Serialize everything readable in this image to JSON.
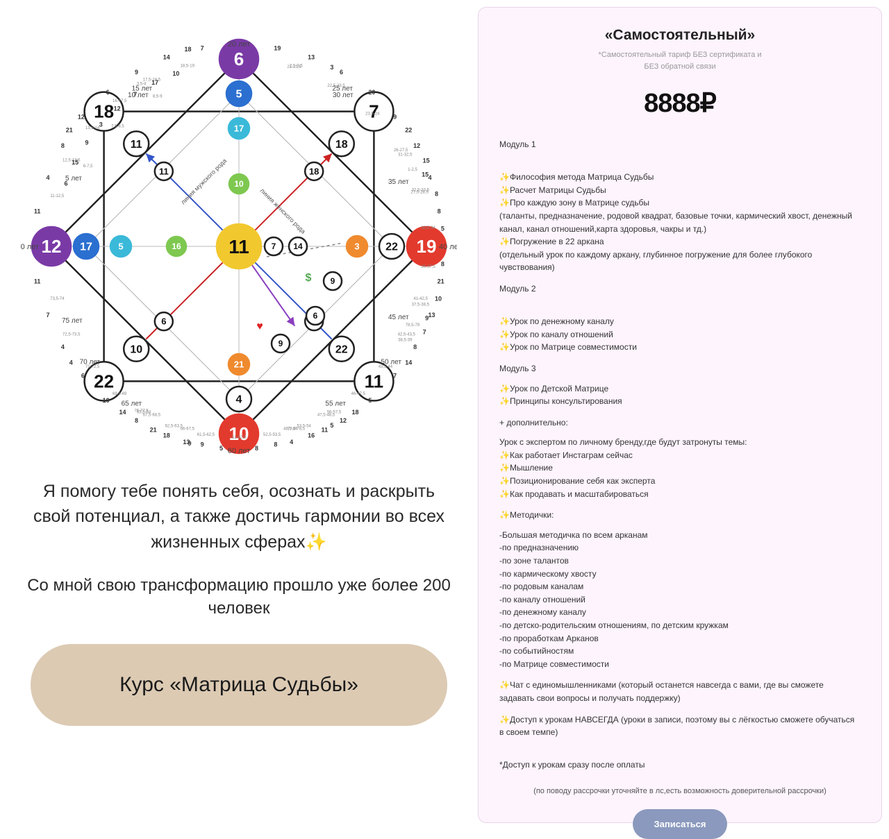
{
  "left": {
    "headline": "Я помогу тебе понять себя, осознать и раскрыть свой потенциал, а также достичь гармонии во всех жизненных сферах✨",
    "subheadline": "Со мной свою трансформацию прошло уже более 200 человек",
    "course_button": "Курс «Матрица Судьбы»"
  },
  "pricing": {
    "title": "«Самостоятельный»",
    "subtitle_line1": "*Самостоятельный тариф БЕЗ сертификата и",
    "subtitle_line2": "БЕЗ обратной связи",
    "price": "8888₽",
    "module1_title": "Модуль 1",
    "m1_i1": "Философия метода Матрица Судьбы",
    "m1_i2": "Расчет Матрицы Судьбы",
    "m1_i3": "Про каждую зону в Матрице судьбы",
    "m1_i3_sub": "(таланты, предназначение, родовой квадрат, базовые точки, кармический хвост, денежный канал, канал отношений,карта здоровья, чакры и тд.)",
    "m1_i4": "Погружение в 22 аркана",
    "m1_i4_sub": "(отдельный урок по каждому аркану, глубинное погружение для более глубокого чувствования)",
    "module2_title": "Модуль 2",
    "m2_i1": "Урок по денежному каналу",
    "m2_i2": "Урок по каналу отношений",
    "m2_i3": "Урок по Матрице совместимости",
    "module3_title": "Модуль 3",
    "m3_i1": "Урок по Детской Матрице",
    "m3_i2": "Принципы консультирования",
    "extra_title": "+ дополнительно:",
    "extra_sub": "Урок с экспертом по личному бренду,где будут затронуты темы:",
    "e1": "Как работает Инстаграм сейчас",
    "e2": "Мышление",
    "e3": "Позиционирование себя как эксперта",
    "e4": "Как продавать и масштабироваться",
    "method_title": "Методички:",
    "md1": "-Большая методичка по всем арканам",
    "md2": "-по предназначению",
    "md3": "-по зоне талантов",
    "md4": "-по кармическому хвосту",
    "md5": "-по родовым каналам",
    "md6": "-по каналу отношений",
    "md7": "-по денежному каналу",
    "md8": "-по детско-родительским отношениям, по детским кружкам",
    "md9": "-по проработкам Арканов",
    "md10": "-по событийностям",
    "md11": "-по Матрице совместимости",
    "chat": "Чат с единомышленниками (который останется навсегда с вами, где вы сможете задавать свои вопросы и получать поддержку)",
    "access": "Доступ к урокам НАВСЕГДА (уроки в записи, поэтому вы с лёгкостью сможете обучаться в своем темпе)",
    "access_note": "*Доступ к урокам сразу после оплаты",
    "installment_note": "(по поводу рассрочки уточняйте в лс,есть возможность доверительной рассрочки)",
    "enroll": "Записаться"
  },
  "diagram": {
    "colors": {
      "purple": "#7a3aa6",
      "blue": "#2b6fd0",
      "cyan": "#3bb9d9",
      "green": "#7ec850",
      "yellow": "#f2c82f",
      "orange": "#f08a2e",
      "red": "#e33a2e",
      "outline": "#222222",
      "grid": "#bbbbbb",
      "arrow_blue": "#3355cc",
      "arrow_red": "#cc2222",
      "arrow_purple": "#8a3fbf"
    },
    "big": {
      "top": {
        "v": "6",
        "fill": "purple",
        "text": "#ffffff"
      },
      "right": {
        "v": "19",
        "fill": "red",
        "text": "#ffffff"
      },
      "bottom": {
        "v": "10",
        "fill": "red",
        "text": "#ffffff"
      },
      "left": {
        "v": "12",
        "fill": "purple",
        "text": "#ffffff"
      },
      "tl": {
        "v": "18",
        "fill": "none",
        "text": "#111111"
      },
      "tr": {
        "v": "7",
        "fill": "none",
        "text": "#111111"
      },
      "br": {
        "v": "11",
        "fill": "none",
        "text": "#111111"
      },
      "bl": {
        "v": "22",
        "fill": "none",
        "text": "#111111"
      },
      "center": {
        "v": "11",
        "fill": "yellow",
        "text": "#111111"
      }
    },
    "ring2": {
      "top": {
        "v": "5",
        "fill": "blue",
        "text": "#ffffff"
      },
      "right": {
        "v": "22",
        "fill": "none",
        "text": "#111111"
      },
      "bottom": {
        "v": "4",
        "fill": "none",
        "text": "#111111"
      },
      "left": {
        "v": "17",
        "fill": "blue",
        "text": "#ffffff"
      },
      "tl": {
        "v": "11",
        "fill": "none",
        "text": "#111111"
      },
      "tr": {
        "v": "18",
        "fill": "none",
        "text": "#111111"
      },
      "br": {
        "v": "22",
        "fill": "none",
        "text": "#111111"
      },
      "bl": {
        "v": "10",
        "fill": "none",
        "text": "#111111"
      }
    },
    "ring3": {
      "top": {
        "v": "17",
        "fill": "cyan",
        "text": "#ffffff"
      },
      "right": {
        "v": "3",
        "fill": "orange",
        "text": "#ffffff"
      },
      "bottom": {
        "v": "21",
        "fill": "orange",
        "text": "#ffffff"
      },
      "left": {
        "v": "5",
        "fill": "cyan",
        "text": "#ffffff"
      },
      "tl": {
        "v": "11",
        "fill": "none",
        "text": "#111111"
      },
      "tr": {
        "v": "18",
        "fill": "none",
        "text": "#111111"
      },
      "br": {
        "v": "6",
        "fill": "none",
        "text": "#111111"
      },
      "bl": {
        "v": "6",
        "fill": "none",
        "text": "#111111"
      }
    },
    "inner": {
      "left": {
        "v": "16",
        "fill": "green",
        "text": "#ffffff"
      },
      "top": {
        "v": "10",
        "fill": "green",
        "text": "#ffffff"
      },
      "c_r1": {
        "v": "7",
        "fill": "none",
        "text": "#111111"
      },
      "c_r2": {
        "v": "14",
        "fill": "none",
        "text": "#111111"
      },
      "d_r": {
        "v": "9",
        "fill": "none",
        "text": "#111111"
      },
      "d_r2": {
        "v": "6",
        "fill": "none",
        "text": "#111111"
      },
      "d_b": {
        "v": "9",
        "fill": "none",
        "text": "#111111"
      }
    },
    "age_labels": {
      "top": "20 лет",
      "right": "40 лет",
      "bottom": "60 лет",
      "left": "0 лет",
      "tl_out": "15 лет",
      "tr_out": "25 лет",
      "l_75": "75 лет",
      "l_5": "5 лет",
      "br_50": "50 лет",
      "br_55": "55 лет",
      "bl_65": "65 лет",
      "bl_70": "70 лет",
      "r_35": "35 лет",
      "r_45": "45 лет",
      "tl_10": "10 лет",
      "tr_30": "30 лет"
    },
    "line_labels": {
      "male": "линия мужского рода",
      "female": "линия женского рода"
    },
    "symbols": {
      "heart": "♥",
      "dollar": "$"
    },
    "ticks_tl": [
      "11",
      "4",
      "8",
      "12",
      "6",
      "9",
      "14",
      "7"
    ],
    "ticks_tl_sub": [
      "11-12,5",
      "12,5-13,5",
      "13,5-14",
      "16-17,5",
      "17,5-18,5",
      "18,5-19"
    ],
    "ticks_tr": [
      "19",
      "13",
      "6",
      "20",
      "9",
      "12",
      "4",
      "8"
    ],
    "ticks_tr_sub": [
      "21-22,5",
      "22,5-23,5",
      "23,5-24",
      "26-27,5",
      "27,5-28,5"
    ],
    "ticks_r": [
      "22",
      "15",
      "8",
      "5",
      "8",
      "10",
      "7",
      "14"
    ],
    "ticks_r_sub": [
      "31-32,5",
      "32,5-33,5",
      "33,5-34",
      "36-37,5",
      "37,5-38,5",
      "38,5-39"
    ],
    "ticks_br": [
      "21",
      "13",
      "8",
      "7",
      "5",
      "12",
      "16",
      "8"
    ],
    "ticks_br_sub": [
      "41-42,5",
      "42,5-43,5",
      "43,5-44",
      "46-47,5",
      "47,5-48,5",
      "48,5-49"
    ],
    "ticks_b": [
      "18",
      "11",
      "4",
      "8",
      "5",
      "13",
      "21",
      "14"
    ],
    "ticks_b_sub": [
      "56-57,5",
      "53,5-54",
      "52,5-53,5",
      "51-52,5",
      "61,5-62,5",
      "62,5-63,5",
      "63,5-64"
    ],
    "ticks_bl": [
      "9",
      "18",
      "8",
      "10",
      "6",
      "4",
      "7",
      "11"
    ],
    "ticks_bl_sub": [
      "66-67,5",
      "67,5-68,5",
      "68,5-69",
      "71-72,5",
      "72,5-73,5",
      "73,5-74"
    ],
    "ticks_l": [
      "4",
      "9",
      "5",
      "9",
      "15",
      "3",
      "18",
      "21"
    ],
    "ticks_l_sub": [
      "76-77,5",
      "77,5-78,5",
      "78,5-79",
      "1-2,5",
      "2,5-3,5",
      "3,5-4"
    ],
    "ticks_t": [
      "6",
      "15",
      "9",
      "3",
      "12",
      "7",
      "17",
      "10"
    ],
    "ticks_t_sub": [
      "6-7,5",
      "7,5-8,5",
      "8,5-9"
    ]
  }
}
